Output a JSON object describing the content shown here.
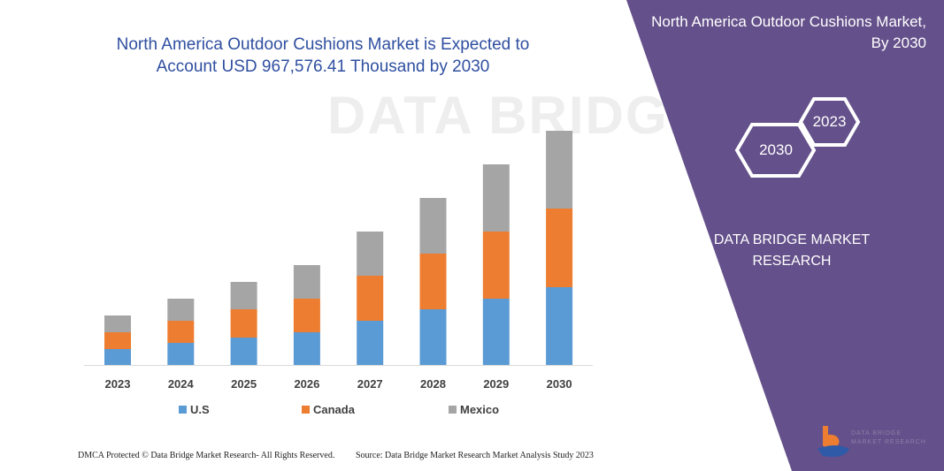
{
  "chart_data": {
    "type": "bar",
    "stacked": true,
    "title": "North America Outdoor Cushions Market is Expected to Account USD 967,576.41 Thousand by 2030",
    "categories": [
      "2023",
      "2024",
      "2025",
      "2026",
      "2027",
      "2028",
      "2029",
      "2030"
    ],
    "series": [
      {
        "name": "U.S",
        "color": "#5b9bd5",
        "values": [
          18,
          25,
          31,
          37,
          50,
          63,
          75,
          88
        ]
      },
      {
        "name": "Canada",
        "color": "#ed7d31",
        "values": [
          19,
          25,
          32,
          38,
          51,
          63,
          76,
          89
        ]
      },
      {
        "name": "Mexico",
        "color": "#a5a5a5",
        "values": [
          19,
          25,
          31,
          38,
          50,
          63,
          76,
          88
        ]
      }
    ],
    "legend_position": "bottom",
    "grid": false,
    "axis_values_shown": false
  },
  "panel": {
    "title": "North America Outdoor Cushions Market, By 2030",
    "hex_front": "2030",
    "hex_back": "2023",
    "brand": "DATA BRIDGE MARKET RESEARCH",
    "logo_text": "DATA BRIDGE MARKET RESEARCH",
    "color": "#64508a"
  },
  "footer": {
    "left": "DMCA Protected © Data Bridge Market Research- All Rights Reserved.",
    "right": "Source: Data Bridge Market Research Market Analysis Study 2023"
  },
  "watermark": "DATA BRIDGE"
}
